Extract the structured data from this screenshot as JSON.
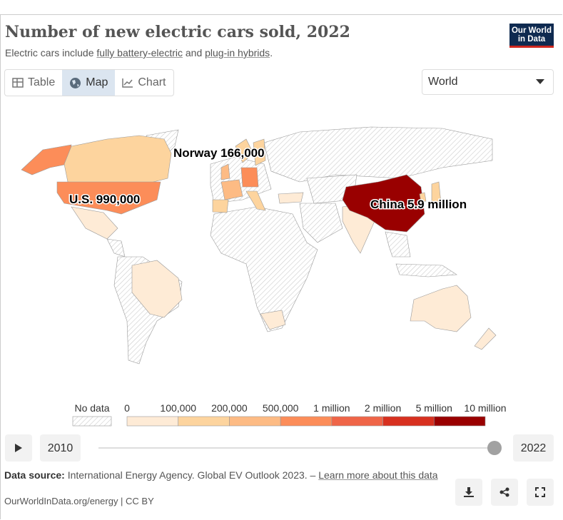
{
  "header": {
    "title": "Number of new electric cars sold, 2022",
    "subtitle": [
      "Electric cars include ",
      "fully battery-electric",
      " and ",
      "plug-in hybrids",
      "."
    ],
    "logo": [
      "Our World",
      "in Data"
    ]
  },
  "tabs": [
    "Table",
    "Map",
    "Chart"
  ],
  "active_tab": 1,
  "entity_selector": "World",
  "map": {
    "annotations": [
      "Norway 166,000",
      "U.S. 990,000",
      "China 5.9 million"
    ]
  },
  "legend": {
    "no_data": "No data",
    "labels": [
      "0",
      "100,000",
      "200,000",
      "500,000",
      "1 million",
      "2 million",
      "5 million",
      "10 million"
    ],
    "colors": [
      "#feebd6",
      "#fdd49e",
      "#fdbb84",
      "#fc8d59",
      "#ef6548",
      "#d7301f",
      "#990000"
    ]
  },
  "timeline": {
    "start": "2010",
    "end": "2022"
  },
  "footer": {
    "source_label": "Data source:",
    "source": " International Energy Agency. Global EV Outlook 2023. – ",
    "link": "Learn more about this data",
    "credit": "OurWorldInData.org/energy | CC BY"
  }
}
